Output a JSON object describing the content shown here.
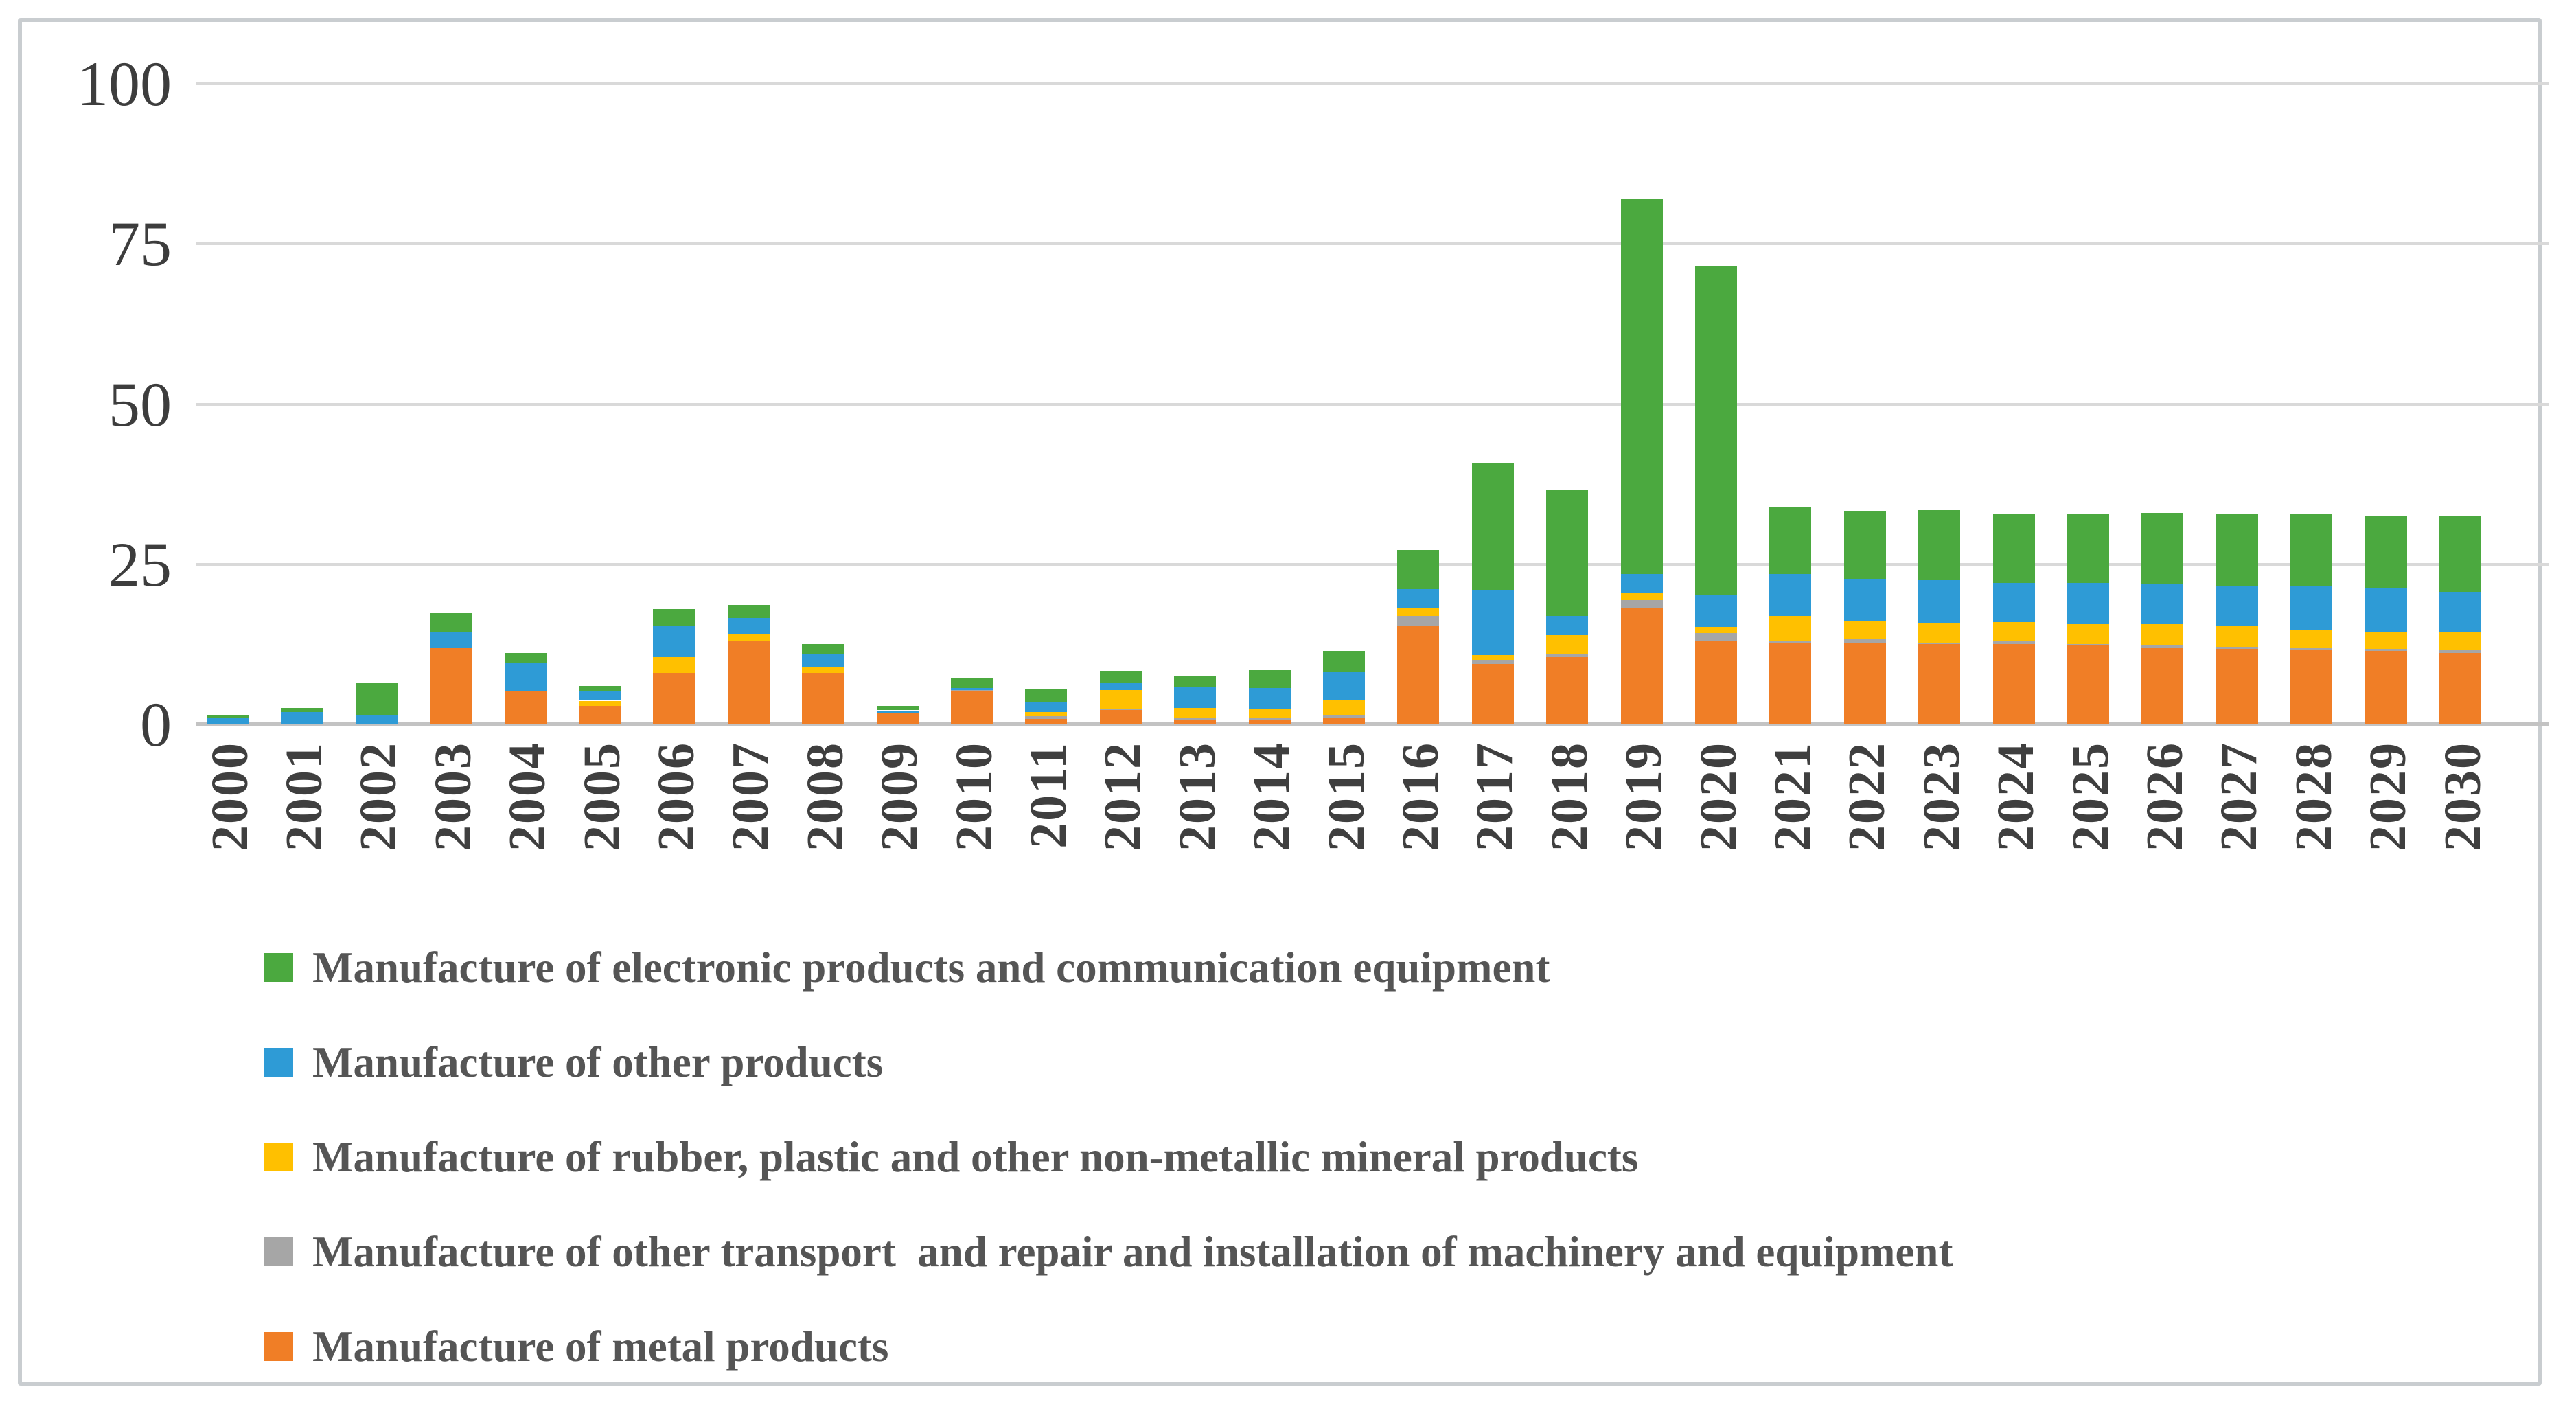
{
  "chart_data": {
    "type": "bar",
    "stacked": true,
    "title": "",
    "xlabel": "",
    "ylabel": "",
    "grid": true,
    "legend_position": "bottom-left",
    "y_axis": {
      "min": 0,
      "max": 100,
      "ticks": [
        0,
        25,
        50,
        75,
        100
      ]
    },
    "categories": [
      "2000",
      "2001",
      "2002",
      "2003",
      "2004",
      "2005",
      "2006",
      "2007",
      "2008",
      "2009",
      "2010",
      "2011",
      "2012",
      "2013",
      "2014",
      "2015",
      "2016",
      "2017",
      "2018",
      "2019",
      "2020",
      "2021",
      "2022",
      "2023",
      "2024",
      "2025",
      "2026",
      "2027",
      "2028",
      "2029",
      "2030"
    ],
    "series": [
      {
        "name": "Manufacture of metal products",
        "color": "#F07E26",
        "values": [
          0,
          0,
          0,
          11.9,
          5.1,
          2.9,
          8.0,
          13.1,
          8.0,
          1.8,
          5.2,
          0.9,
          2.3,
          0.7,
          0.8,
          1.0,
          15.4,
          9.4,
          10.5,
          18.1,
          13.0,
          12.6,
          12.7,
          12.5,
          12.5,
          12.3,
          12.0,
          11.8,
          11.6,
          11.5,
          11.2
        ]
      },
      {
        "name": "Manufacture of other transport  and repair and installation of machinery and equipment",
        "color": "#A6A6A6",
        "values": [
          0,
          0,
          0,
          0,
          0,
          0,
          0,
          0,
          0,
          0,
          0.2,
          0.4,
          0.1,
          0.4,
          0.3,
          0.5,
          1.5,
          0.7,
          0.4,
          1.3,
          1.3,
          0.5,
          0.6,
          0.3,
          0.5,
          0.2,
          0.3,
          0.3,
          0.4,
          0.3,
          0.5
        ]
      },
      {
        "name": "Manufacture of rubber, plastic and other non-metallic mineral products",
        "color": "#FFC000",
        "values": [
          0,
          0,
          0,
          0,
          0,
          0.8,
          2.5,
          0.9,
          0.9,
          0,
          0,
          0.6,
          3.0,
          1.5,
          1.3,
          2.3,
          1.3,
          0.7,
          3.0,
          1.1,
          0.9,
          3.8,
          2.9,
          3.1,
          3.0,
          3.2,
          3.3,
          3.3,
          2.7,
          2.6,
          2.7
        ]
      },
      {
        "name": "Manufacture of other products",
        "color": "#2E9BD6",
        "values": [
          1.1,
          1.9,
          1.5,
          2.6,
          4.6,
          1.5,
          4.9,
          2.6,
          2.0,
          0.4,
          0.3,
          1.5,
          1.1,
          3.3,
          3.3,
          4.5,
          2.9,
          10.2,
          3.0,
          3.0,
          5.0,
          6.6,
          6.5,
          6.7,
          6.1,
          6.4,
          6.3,
          6.2,
          6.8,
          6.9,
          6.3
        ]
      },
      {
        "name": "Manufacture of electronic products and communication equipment",
        "color": "#4BA93F",
        "values": [
          0.4,
          0.7,
          5.0,
          2.9,
          1.4,
          0.8,
          2.6,
          2.0,
          1.6,
          0.7,
          1.6,
          2.1,
          1.9,
          1.6,
          2.8,
          3.2,
          6.1,
          19.7,
          19.8,
          58.5,
          51.3,
          10.5,
          10.6,
          10.8,
          10.8,
          10.8,
          11.1,
          11.2,
          11.3,
          11.3,
          11.8
        ]
      }
    ],
    "legend": [
      {
        "label": "Manufacture of electronic products and communication equipment",
        "color": "#4BA93F"
      },
      {
        "label": "Manufacture of other products",
        "color": "#2E9BD6"
      },
      {
        "label": "Manufacture of rubber, plastic and other non-metallic mineral products",
        "color": "#FFC000"
      },
      {
        "label": "Manufacture of other transport  and repair and installation of machinery and equipment",
        "color": "#A6A6A6"
      },
      {
        "label": "Manufacture of metal products",
        "color": "#F07E26"
      }
    ]
  },
  "colors": {
    "gridline": "#d9d9d9",
    "axis_line": "#c3c3c3",
    "tick_text": "#3f3f3f",
    "legend_text": "#555555",
    "panel_border": "#c9cdd0"
  }
}
